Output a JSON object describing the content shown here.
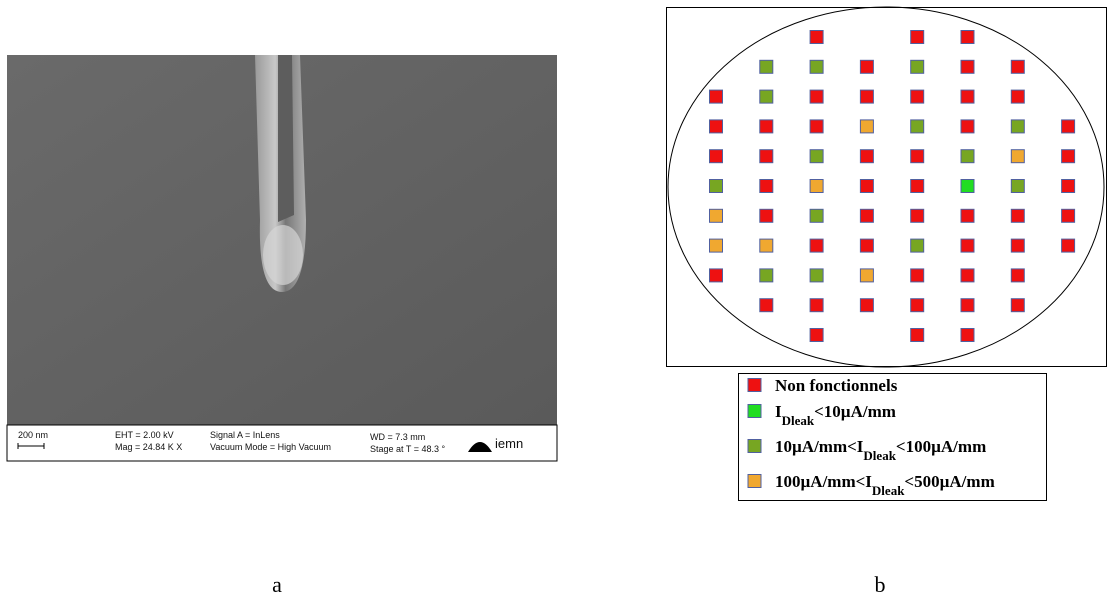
{
  "sem": {
    "scale": "200 nm",
    "eht": "EHT =  2.00 kV",
    "mag": "Mag =  24.84 K X",
    "signal": "Signal A = InLens",
    "vacuum": "Vacuum Mode = High Vacuum",
    "wd": "WD =  7.3 mm",
    "stage": "Stage at T =  48.3 °",
    "logo": "iemn"
  },
  "wafer": {
    "dies": [
      [
        null,
        null,
        0,
        null,
        0,
        0,
        null,
        null
      ],
      [
        null,
        2,
        2,
        0,
        2,
        0,
        0,
        null
      ],
      [
        0,
        2,
        0,
        0,
        0,
        0,
        0,
        null
      ],
      [
        0,
        0,
        0,
        3,
        2,
        0,
        2,
        0
      ],
      [
        0,
        0,
        2,
        0,
        0,
        2,
        3,
        0
      ],
      [
        2,
        0,
        3,
        0,
        0,
        1,
        2,
        0
      ],
      [
        3,
        0,
        2,
        0,
        0,
        0,
        0,
        0
      ],
      [
        3,
        3,
        0,
        0,
        2,
        0,
        0,
        0
      ],
      [
        0,
        2,
        2,
        3,
        0,
        0,
        0,
        null
      ],
      [
        null,
        0,
        0,
        0,
        0,
        0,
        0,
        null
      ],
      [
        null,
        null,
        0,
        null,
        0,
        0,
        null,
        null
      ]
    ],
    "legend": [
      {
        "color": "#ee1111",
        "parts": [
          "Non fonctionnels"
        ]
      },
      {
        "color": "#22dd22",
        "parts": [
          "I",
          "Dleak",
          "<10µA/mm"
        ]
      },
      {
        "color": "#77a622",
        "parts": [
          "10µA/mm<I",
          "Dleak",
          "<100µA/mm"
        ]
      },
      {
        "color": "#f0a830",
        "parts": [
          "100µA/mm<I",
          "Dleak",
          "<500µA/mm"
        ]
      }
    ]
  },
  "captions": [
    "a",
    "b"
  ]
}
